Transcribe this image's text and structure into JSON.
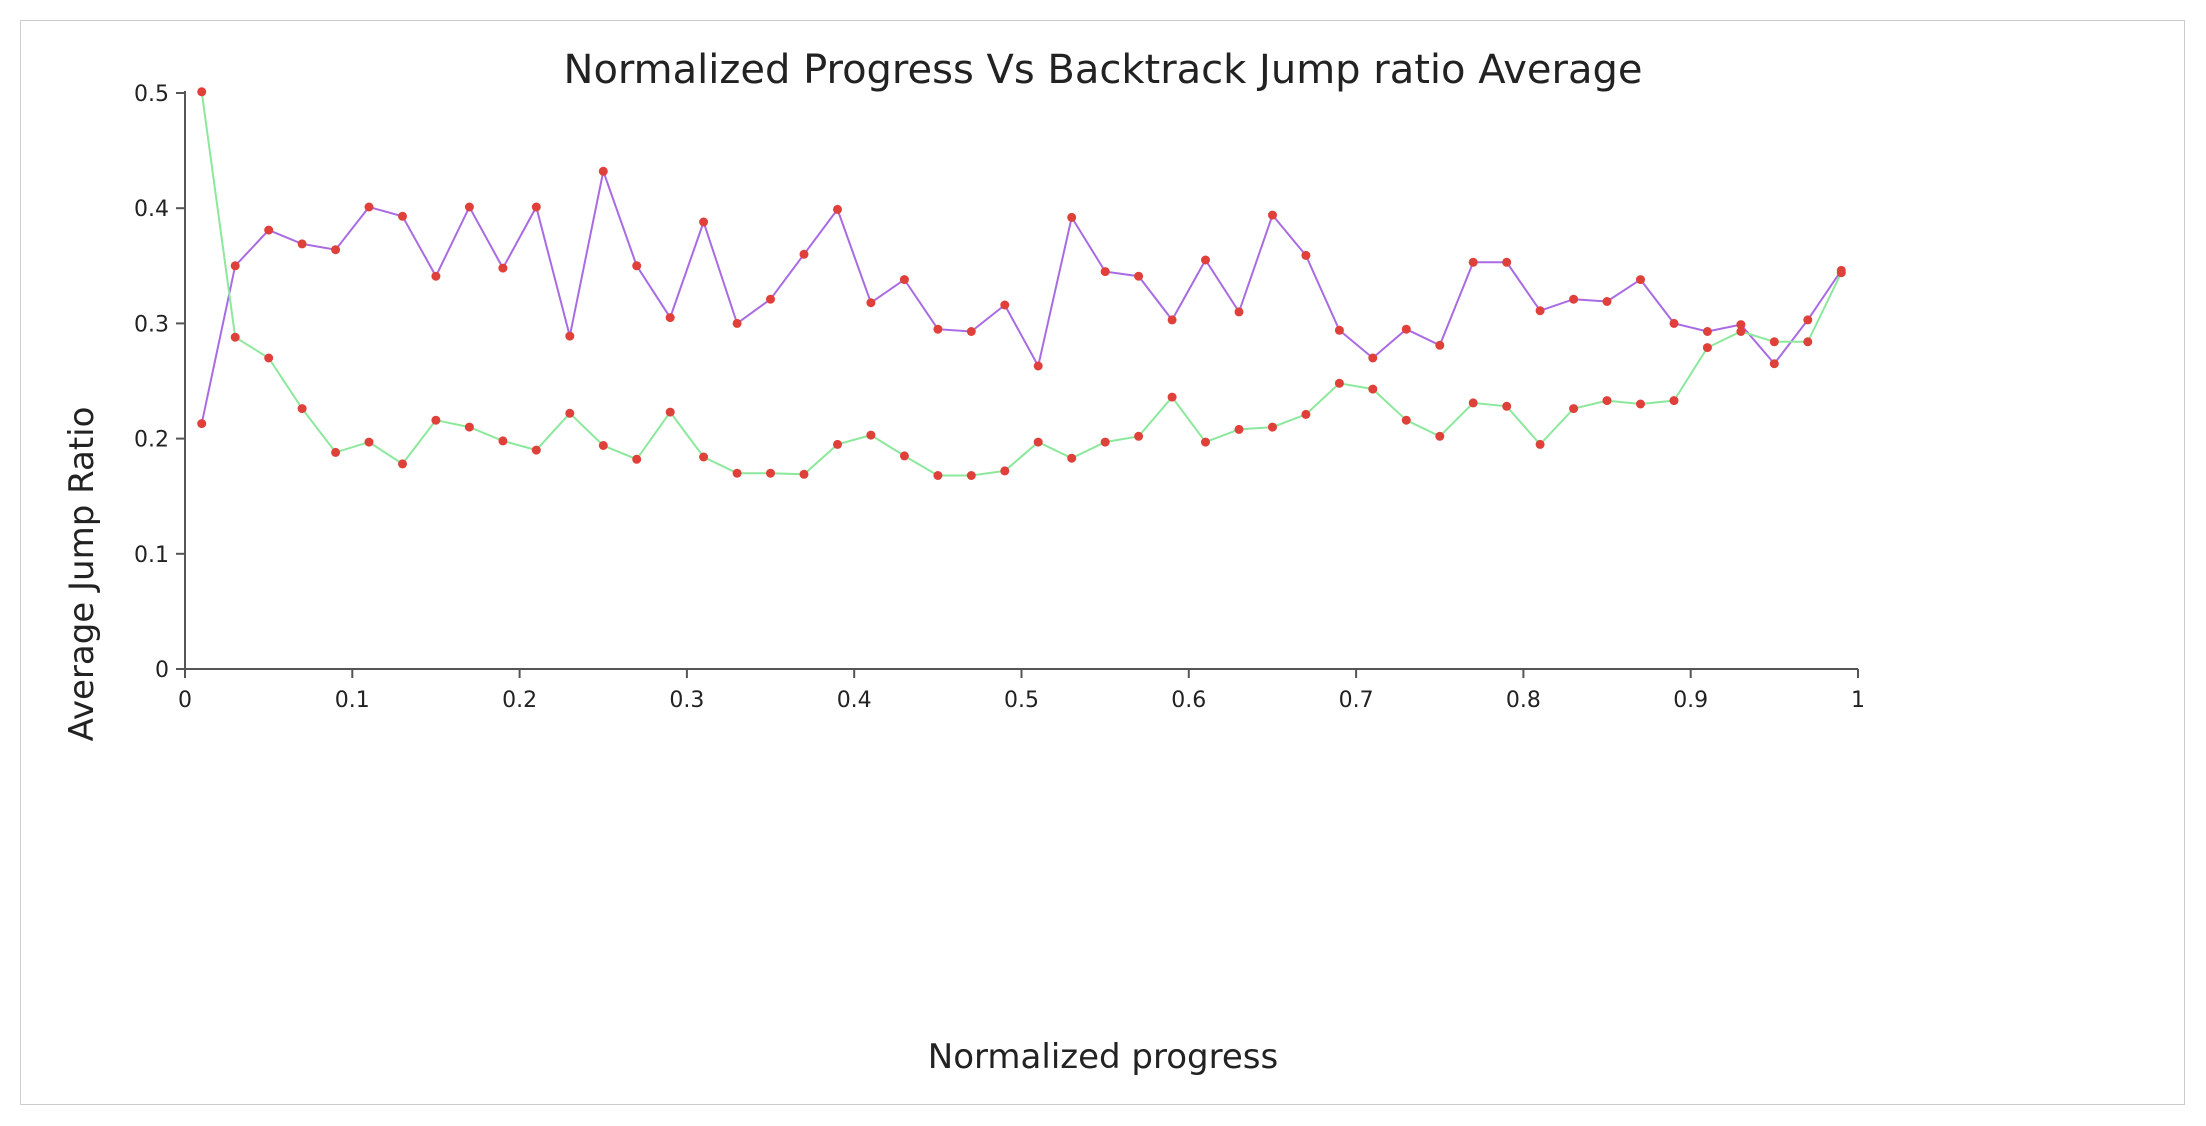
{
  "chart_data": {
    "type": "line",
    "title": "Normalized Progress Vs Backtrack Jump ratio Average",
    "xlabel": "Normalized progress",
    "ylabel": "Average Jump Ratio",
    "xlim": [
      0,
      1
    ],
    "ylim": [
      0,
      0.5
    ],
    "x_ticks": [
      "0",
      "0.1",
      "0.2",
      "0.3",
      "0.4",
      "0.5",
      "0.6",
      "0.7",
      "0.8",
      "0.9",
      "1"
    ],
    "x_tick_values": [
      0,
      0.1,
      0.2,
      0.3,
      0.4,
      0.5,
      0.6,
      0.7,
      0.8,
      0.9,
      1
    ],
    "y_ticks": [
      "0",
      "0.1",
      "0.2",
      "0.3",
      "0.4",
      "0.5"
    ],
    "y_tick_values": [
      0,
      0.1,
      0.2,
      0.3,
      0.4,
      0.5
    ],
    "grid": false,
    "legend": "none",
    "marker_color": "#e0403a",
    "x": [
      0.01,
      0.03,
      0.05,
      0.07,
      0.09,
      0.11,
      0.13,
      0.15,
      0.17,
      0.19,
      0.21,
      0.23,
      0.25,
      0.27,
      0.29,
      0.31,
      0.33,
      0.35,
      0.37,
      0.39,
      0.41,
      0.43,
      0.45,
      0.47,
      0.49,
      0.51,
      0.53,
      0.55,
      0.57,
      0.59,
      0.61,
      0.63,
      0.65,
      0.67,
      0.69,
      0.71,
      0.73,
      0.75,
      0.77,
      0.79,
      0.81,
      0.83,
      0.85,
      0.87,
      0.89,
      0.91,
      0.93,
      0.95,
      0.97,
      0.99
    ],
    "series": [
      {
        "color": "#a96be3",
        "values": [
          0.213,
          0.35,
          0.381,
          0.369,
          0.364,
          0.401,
          0.393,
          0.341,
          0.401,
          0.348,
          0.401,
          0.289,
          0.432,
          0.35,
          0.305,
          0.388,
          0.3,
          0.321,
          0.36,
          0.399,
          0.318,
          0.338,
          0.295,
          0.293,
          0.316,
          0.263,
          0.392,
          0.345,
          0.341,
          0.303,
          0.355,
          0.31,
          0.394,
          0.359,
          0.294,
          0.27,
          0.295,
          0.281,
          0.353,
          0.353,
          0.311,
          0.321,
          0.319,
          0.338,
          0.3,
          0.293,
          0.299,
          0.265,
          0.303,
          0.346
        ]
      },
      {
        "color": "#8ce89c",
        "values": [
          0.501,
          0.288,
          0.27,
          0.226,
          0.188,
          0.197,
          0.178,
          0.216,
          0.21,
          0.198,
          0.19,
          0.222,
          0.194,
          0.182,
          0.223,
          0.184,
          0.17,
          0.17,
          0.169,
          0.195,
          0.203,
          0.185,
          0.168,
          0.168,
          0.172,
          0.197,
          0.183,
          0.197,
          0.202,
          0.236,
          0.197,
          0.208,
          0.21,
          0.221,
          0.248,
          0.243,
          0.216,
          0.202,
          0.231,
          0.228,
          0.195,
          0.226,
          0.233,
          0.23,
          0.233,
          0.279,
          0.293,
          0.284,
          0.284,
          0.344
        ]
      }
    ]
  }
}
